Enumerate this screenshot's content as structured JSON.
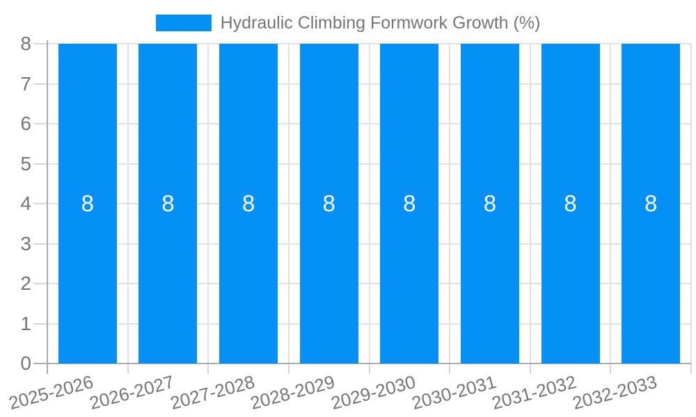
{
  "colors": {
    "bar": "#0590F5",
    "bar_value_text": "#FFFFFF",
    "axis_line": "#ABABAB",
    "grid_line": "#E0E0E0",
    "tick_line": "#D6D6D6",
    "axis_text": "#757575",
    "legend_text": "#757575",
    "background": "#FFFFFF"
  },
  "legend": {
    "label": "Hydraulic Climbing Formwork Growth (%)"
  },
  "chart_data": {
    "type": "bar",
    "title": "Hydraulic Climbing Formwork Growth (%)",
    "categories": [
      "2025-2026",
      "2026-2027",
      "2027-2028",
      "2028-2029",
      "2029-2030",
      "2030-2031",
      "2031-2032",
      "2032-2033"
    ],
    "series": [
      {
        "name": "Hydraulic Climbing Formwork Growth (%)",
        "values": [
          8,
          8,
          8,
          8,
          8,
          8,
          8,
          8
        ]
      }
    ],
    "value_labels": [
      "8",
      "8",
      "8",
      "8",
      "8",
      "8",
      "8",
      "8"
    ],
    "xlabel": "",
    "ylabel": "",
    "ylim": [
      0,
      8
    ],
    "y_ticks": [
      0,
      1,
      2,
      3,
      4,
      5,
      6,
      7,
      8
    ],
    "grid": true,
    "legend_position": "top",
    "x_label_rotation_deg": -15,
    "bar_label_position": "center"
  }
}
